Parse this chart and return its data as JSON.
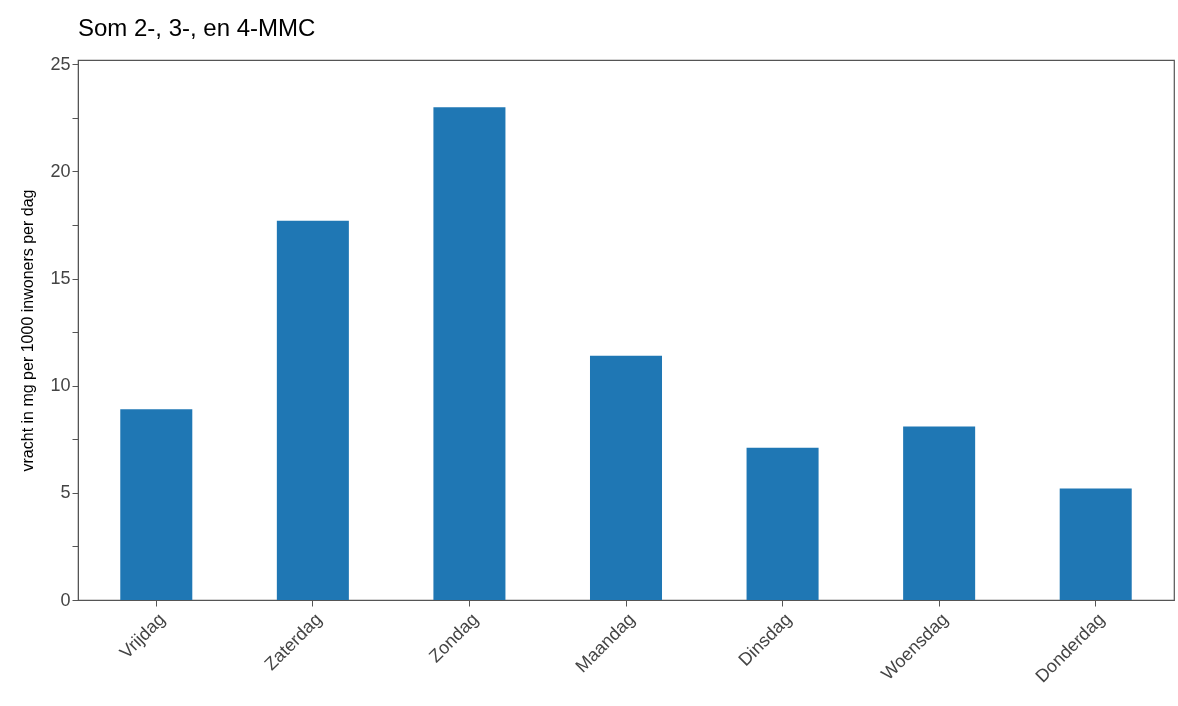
{
  "chart_data": {
    "type": "bar",
    "title": "Som 2-, 3-, en 4-MMC",
    "ylabel": "vracht in mg per 1000 inwoners per dag",
    "categories": [
      "Vrijdag",
      "Zaterdag",
      "Zondag",
      "Maandag",
      "Dinsdag",
      "Woensdag",
      "Donderdag"
    ],
    "values": [
      8.9,
      17.7,
      23.0,
      11.4,
      7.1,
      8.1,
      5.2
    ],
    "color": "#1f77b4",
    "ylim": [
      0,
      25.2
    ],
    "yticks": [
      0,
      {
        "value": 2.5,
        "label": null
      },
      5,
      {
        "value": 7.5,
        "label": null
      },
      10,
      {
        "value": 12.5,
        "label": null
      },
      15,
      {
        "value": 17.5,
        "label": null
      },
      20,
      {
        "value": 22.5,
        "label": null
      },
      25
    ],
    "grid": false
  }
}
